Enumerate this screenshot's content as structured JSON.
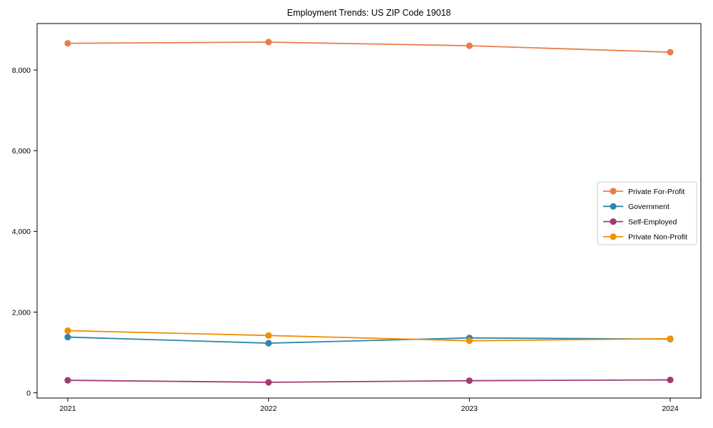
{
  "chart_data": {
    "type": "line",
    "title": "Employment Trends: US ZIP Code 19018",
    "xlabel": "",
    "ylabel": "",
    "x": [
      2021,
      2022,
      2023,
      2024
    ],
    "x_tick_labels": [
      "2021",
      "2022",
      "2023",
      "2024"
    ],
    "y_ticks": [
      0,
      2000,
      4000,
      6000,
      8000
    ],
    "y_tick_labels": [
      "0",
      "2,000",
      "4,000",
      "6,000",
      "8,000"
    ],
    "ylim": [
      -130,
      9150
    ],
    "grid": false,
    "legend_position": "center right",
    "marker": "circle",
    "series": [
      {
        "name": "Private For-Profit",
        "color": "#EB7D4B",
        "values": [
          8660,
          8690,
          8600,
          8440
        ]
      },
      {
        "name": "Government",
        "color": "#2E86AB",
        "values": [
          1380,
          1230,
          1360,
          1330
        ]
      },
      {
        "name": "Self-Employed",
        "color": "#A23B72",
        "values": [
          310,
          260,
          300,
          320
        ]
      },
      {
        "name": "Private Non-Profit",
        "color": "#F18F01",
        "values": [
          1540,
          1420,
          1290,
          1340
        ]
      }
    ]
  }
}
